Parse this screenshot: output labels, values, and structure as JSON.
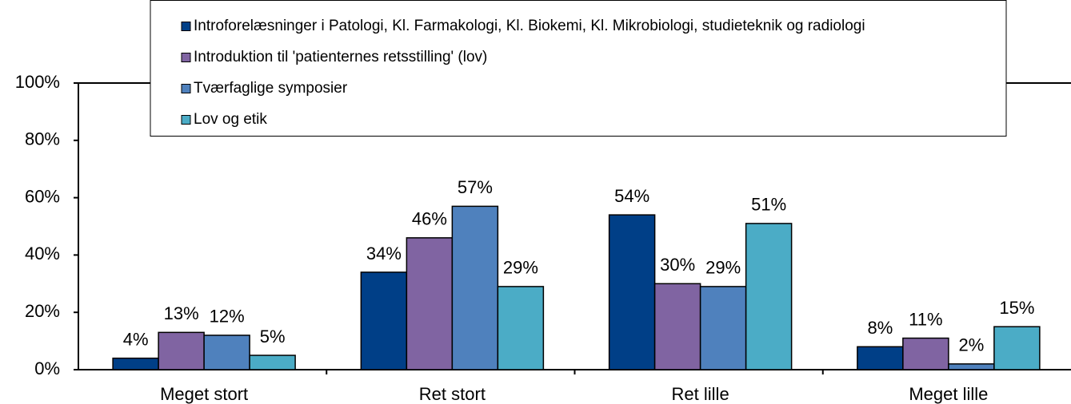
{
  "chart_data": {
    "type": "bar",
    "categories": [
      "Meget stort",
      "Ret stort",
      "Ret lille",
      "Meget lille"
    ],
    "series": [
      {
        "name": "Introforelæsninger i Patologi, Kl. Farmakologi, Kl. Biokemi, Kl. Mikrobiologi, studieteknik og radiologi",
        "color": "#003f87",
        "values": [
          4,
          34,
          54,
          8
        ],
        "value_labels": [
          "4%",
          "34%",
          "54%",
          "8%"
        ]
      },
      {
        "name": "Introduktion til 'patienternes retsstilling' (lov)",
        "color": "#8064a2",
        "values": [
          13,
          46,
          30,
          11
        ],
        "value_labels": [
          "13%",
          "46%",
          "30%",
          "11%"
        ]
      },
      {
        "name": "Tværfaglige symposier",
        "color": "#4f81bd",
        "values": [
          12,
          57,
          29,
          2
        ],
        "value_labels": [
          "12%",
          "57%",
          "29%",
          "2%"
        ]
      },
      {
        "name": "Lov og etik",
        "color": "#4bacc6",
        "values": [
          5,
          29,
          51,
          15
        ],
        "value_labels": [
          "5%",
          "29%",
          "51%",
          "15%"
        ]
      }
    ],
    "ylim": [
      0,
      100
    ],
    "yticks": [
      {
        "value": 0,
        "label": "0%"
      },
      {
        "value": 20,
        "label": "20%"
      },
      {
        "value": 40,
        "label": "40%"
      },
      {
        "value": 60,
        "label": "60%"
      },
      {
        "value": 80,
        "label": "80%"
      },
      {
        "value": 100,
        "label": "100%"
      }
    ],
    "grid": false,
    "legend": "top"
  }
}
